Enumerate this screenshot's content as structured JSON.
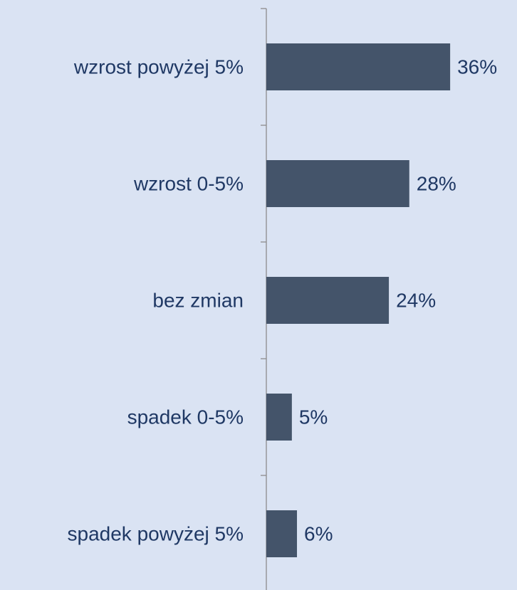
{
  "chart_data": {
    "type": "bar",
    "orientation": "horizontal",
    "categories": [
      "wzrost powyżej 5%",
      "wzrost 0-5%",
      "bez zmian",
      "spadek 0-5%",
      "spadek powyżej 5%"
    ],
    "values": [
      36,
      28,
      24,
      5,
      6
    ],
    "value_labels": [
      "36%",
      "28%",
      "24%",
      "5%",
      "6%"
    ],
    "color": "#44546a"
  }
}
